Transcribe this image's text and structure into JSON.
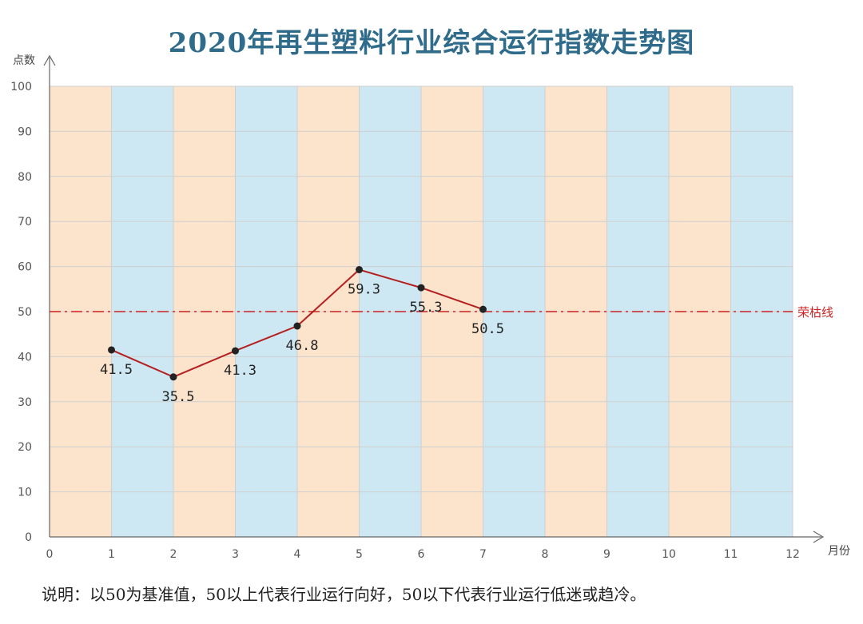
{
  "chart_data": {
    "type": "line",
    "title": "2020年再生塑料行业综合运行指数走势图",
    "ylabel": "点数",
    "xlabel": "月份",
    "x": [
      1,
      2,
      3,
      4,
      5,
      6,
      7
    ],
    "values": [
      41.5,
      35.5,
      41.3,
      46.8,
      59.3,
      55.3,
      50.5
    ],
    "data_labels": [
      "41.5",
      "35.5",
      "41.3",
      "46.8",
      "59.3",
      "55.3",
      "50.5"
    ],
    "xlim": [
      0,
      12
    ],
    "ylim": [
      0,
      100
    ],
    "x_ticks": [
      "0",
      "1",
      "2",
      "3",
      "4",
      "5",
      "6",
      "7",
      "8",
      "9",
      "10",
      "11",
      "12"
    ],
    "y_ticks": [
      "0",
      "10",
      "20",
      "30",
      "40",
      "50",
      "60",
      "70",
      "80",
      "90",
      "100"
    ],
    "grid": true,
    "reference_line": {
      "value": 50,
      "label": "荣枯线",
      "color": "#cc2222"
    },
    "band_colors": [
      "#fce4cc",
      "#cde8f3"
    ],
    "line_color": "#b51f1f",
    "marker_color": "#222222",
    "note": "说明：以50为基准值，50以上代表行业运行向好，50以下代表行业运行低迷或趋冷。"
  }
}
